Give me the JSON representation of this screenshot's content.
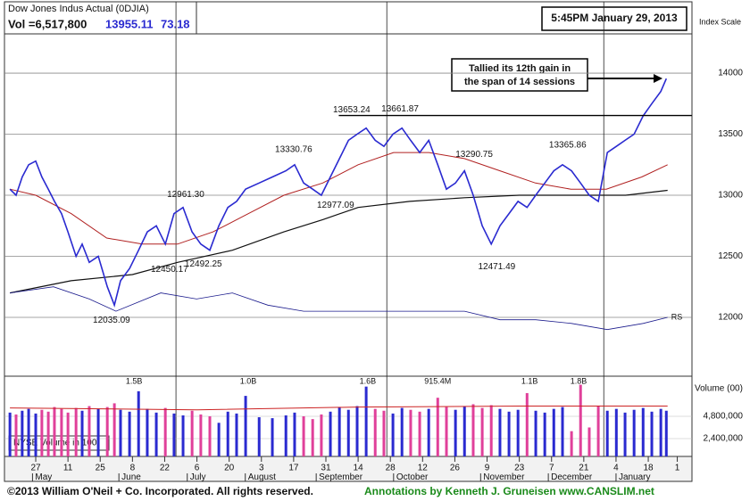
{
  "chart_data": {
    "type": "stock",
    "title": "Dow Jones Indus Actual  (0DJIA)",
    "volume_text": "Vol =6,517,800",
    "last_price": "13955.11",
    "change": "73.18",
    "timestamp": "5:45PM January 29, 2013",
    "y_axis_label": "Index Scale",
    "volume_axis_label": "Volume (00)",
    "volume_legend": "NYSE Volume in 100",
    "footer_left": "©2013 William O'Neil + Co. Incorporated. All rights reserved.",
    "footer_right": "Annotations by Kenneth J. Gruneisen www.CANSLIM.net",
    "annotation": {
      "lines": [
        "Tallied its 12th gain in",
        "the span of 14 sessions"
      ]
    },
    "xlim": [
      -9.7,
      199.4
    ],
    "ylim": [
      11518,
      14307
    ],
    "yticks": [
      12000,
      12500,
      13000,
      13500,
      14000
    ],
    "volume_ylim": [
      480000,
      8832000
    ],
    "volume_ticks": [
      {
        "value": 2400000,
        "label": "2,400,000"
      },
      {
        "value": 4800000,
        "label": "4,800,000"
      }
    ],
    "xticks": [
      {
        "value": 0,
        "label": "27"
      },
      {
        "value": 10,
        "label": "11"
      },
      {
        "value": 20,
        "label": "25"
      },
      {
        "value": 30,
        "label": "8"
      },
      {
        "value": 40,
        "label": "22"
      },
      {
        "value": 50,
        "label": "6"
      },
      {
        "value": 60,
        "label": "20"
      },
      {
        "value": 70,
        "label": "3"
      },
      {
        "value": 80,
        "label": "17"
      },
      {
        "value": 90,
        "label": "31"
      },
      {
        "value": 100,
        "label": "14"
      },
      {
        "value": 110,
        "label": "28"
      },
      {
        "value": 120,
        "label": "12"
      },
      {
        "value": 130,
        "label": "26"
      },
      {
        "value": 140,
        "label": "9"
      },
      {
        "value": 150,
        "label": "23"
      },
      {
        "value": 160,
        "label": "7"
      },
      {
        "value": 170,
        "label": "21"
      },
      {
        "value": 180,
        "label": "4"
      },
      {
        "value": 190,
        "label": "18"
      },
      {
        "value": 199,
        "label": "1"
      }
    ],
    "month_ticks": [
      {
        "value": -1,
        "label": "May"
      },
      {
        "value": 25.8,
        "label": "June"
      },
      {
        "value": 47,
        "label": "July"
      },
      {
        "value": 65,
        "label": "August"
      },
      {
        "value": 87,
        "label": "September"
      },
      {
        "value": 111,
        "label": "October"
      },
      {
        "value": 138,
        "label": "November"
      },
      {
        "value": 159,
        "label": "December"
      },
      {
        "value": 180,
        "label": "January"
      }
    ],
    "xgrid": [
      43.5,
      108.9,
      176.2
    ],
    "grid": true,
    "x": [
      -8.0,
      -6.1,
      -4.2,
      -2.2,
      0,
      1.9,
      3.9,
      5.8,
      8.0,
      10.0,
      12.5,
      14.4,
      16.6,
      19.4,
      22.2,
      24.4,
      26.3,
      29.1,
      31.9,
      34.6,
      37.4,
      40.2,
      42.9,
      45.7,
      48.5,
      51.2,
      54.0,
      56.8,
      59.6,
      62.3,
      65.1,
      69.3,
      73.4,
      77.6,
      80.3,
      83.1,
      85.9,
      88.6,
      91.4,
      94.2,
      97.0,
      99.7,
      102.5,
      105.3,
      108.0,
      110.8,
      113.6,
      116.3,
      119.1,
      121.9,
      124.7,
      127.4,
      130.2,
      133.0,
      135.7,
      138.5,
      141.3,
      144.0,
      146.8,
      149.6,
      152.4,
      155.1,
      157.9,
      160.7,
      163.4,
      166.2,
      169.0,
      171.7,
      174.5,
      177.3,
      180.1,
      182.8,
      185.6,
      188.4,
      191.1,
      193.9,
      195.6
    ],
    "price": {
      "color": "#2a2ad0",
      "values": [
        13050,
        13000,
        13150,
        13250,
        13280,
        13150,
        13050,
        12950,
        12850,
        12700,
        12500,
        12600,
        12450,
        12500,
        12250,
        12100,
        12300,
        12400,
        12550,
        12700,
        12750,
        12600,
        12850,
        12900,
        12700,
        12600,
        12550,
        12750,
        12900,
        12950,
        13050,
        13100,
        13150,
        13200,
        13250,
        13100,
        13050,
        13000,
        13150,
        13300,
        13450,
        13500,
        13550,
        13450,
        13400,
        13500,
        13550,
        13450,
        13350,
        13450,
        13250,
        13050,
        13100,
        13200,
        13000,
        12750,
        12600,
        12750,
        12850,
        12950,
        12900,
        13000,
        13100,
        13200,
        13250,
        13200,
        13100,
        13000,
        12950,
        13350,
        13400,
        13450,
        13500,
        13650,
        13750,
        13850,
        13955.11
      ]
    },
    "volume": {
      "up_color": "#2a2ad0",
      "down_color": "#e0409a",
      "values": [
        5200000,
        5000000,
        5400000,
        5600000,
        5100000,
        5500000,
        5300000,
        5800000,
        5600000,
        5200000,
        5700000,
        5400000,
        5900000,
        5600000,
        5800000,
        6200000,
        5500000,
        5300000,
        7500000,
        5600000,
        5200000,
        5700000,
        5100000,
        4900000,
        5400000,
        5000000,
        4800000,
        4100000,
        5300000,
        5100000,
        7000000,
        4700000,
        4600000,
        4900000,
        5200000,
        4800000,
        4500000,
        5000000,
        5300000,
        5800000,
        5500000,
        5900000,
        8000000,
        5600000,
        5400000,
        5100000,
        5700000,
        5500000,
        5300000,
        5600000,
        6800000,
        5800000,
        5500000,
        5900000,
        6100000,
        5700000,
        6000000,
        5600000,
        5300000,
        5500000,
        7300000,
        5400000,
        5200000,
        5600000,
        5800000,
        3200000,
        8200000,
        3600000,
        5900000,
        5400000,
        5600000,
        5200000,
        5500000,
        5700000,
        5300000,
        5600000,
        5400000
      ]
    },
    "volume_avg": {
      "color": "#cc2222",
      "x": [
        -8,
        50,
        100,
        150,
        196
      ],
      "values": [
        5700000,
        5500000,
        5800000,
        5900000,
        5900000
      ]
    },
    "volume_labels": {
      "x": [
        30.5,
        65.9,
        103.0,
        124.7,
        153.2,
        168.4
      ],
      "labels": [
        "1.5B",
        "1.0B",
        "1.6B",
        "915.4M",
        "1.1B",
        "1.8B"
      ]
    },
    "ma50": {
      "color": "#b02020",
      "x": [
        -8,
        0,
        11,
        22,
        33,
        44,
        55,
        66,
        77,
        89,
        100,
        111,
        122,
        133,
        144,
        155,
        166,
        177,
        188,
        196
      ],
      "values": [
        13050,
        13000,
        12850,
        12650,
        12600,
        12600,
        12700,
        12850,
        13000,
        13100,
        13250,
        13350,
        13350,
        13300,
        13200,
        13100,
        13050,
        13050,
        13150,
        13250
      ]
    },
    "ma200": {
      "color": "#111111",
      "x": [
        -8,
        11,
        30,
        44,
        61,
        77,
        89,
        100,
        116,
        133,
        150,
        166,
        183,
        196
      ],
      "values": [
        12200,
        12300,
        12350,
        12450,
        12550,
        12700,
        12800,
        12900,
        12950,
        12980,
        13000,
        13000,
        13000,
        13040
      ]
    },
    "rs": {
      "name": "RS",
      "color": "#1a1a8c",
      "x": [
        -8,
        5.5,
        16.6,
        24.9,
        38.8,
        49.9,
        61,
        72,
        83.1,
        94.2,
        110.8,
        121.9,
        133,
        144,
        155.1,
        166.2,
        177.3,
        188.4,
        196
      ],
      "values": [
        12200,
        12250,
        12150,
        12050,
        12200,
        12150,
        12200,
        12100,
        12050,
        12050,
        12050,
        12050,
        12050,
        11980,
        11980,
        11950,
        11900,
        11950,
        12000
      ]
    },
    "resistance": {
      "value": 13653.24,
      "x": [
        94,
        203.5
      ]
    },
    "high_labels": {
      "x": [
        46.5,
        80,
        98,
        113,
        136,
        165
      ],
      "values": [
        12961.3,
        13330.76,
        13653.24,
        13661.87,
        13290.75,
        13365.86
      ],
      "value_labels": [
        "12961.30",
        "13330.76",
        "13653.24",
        "13661.87",
        "13290.75",
        "13365.86"
      ]
    },
    "low_labels": {
      "x": [
        23.5,
        41.5,
        52,
        93,
        143
      ],
      "values": [
        12035.09,
        12450.17,
        12492.25,
        12977.09,
        12471.49
      ],
      "value_labels": [
        "12035.09",
        "12450.17",
        "12492.25",
        "12977.09",
        "12471.49"
      ]
    }
  }
}
